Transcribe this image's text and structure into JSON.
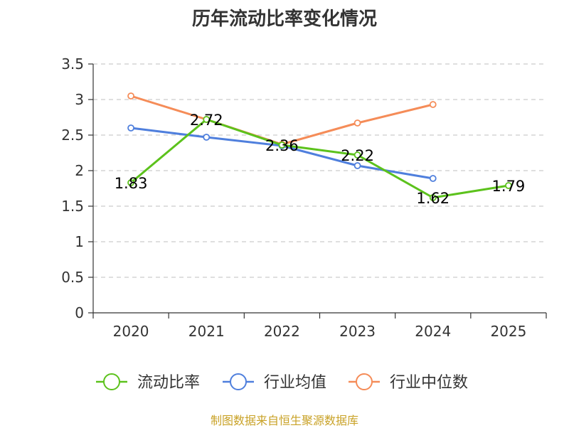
{
  "title": "历年流动比率变化情况",
  "source": "制图数据来自恒生聚源数据库",
  "chart_data": {
    "type": "line",
    "title": "历年流动比率变化情况",
    "xlabel": "",
    "ylabel": "",
    "categories": [
      "2020",
      "2021",
      "2022",
      "2023",
      "2024",
      "2025"
    ],
    "ylim": [
      0,
      3.5
    ],
    "yticks": [
      0,
      0.5,
      1,
      1.5,
      2,
      2.5,
      3,
      3.5
    ],
    "ytick_labels": [
      "0",
      "0.5",
      "1",
      "1.5",
      "2",
      "2.5",
      "3",
      "3.5"
    ],
    "grid": true,
    "legend_position": "bottom",
    "series": [
      {
        "name": "流动比率",
        "color": "#5cc21c",
        "values": [
          1.83,
          2.72,
          2.36,
          2.22,
          1.62,
          1.79
        ],
        "data_labels": [
          "1.83",
          "2.72",
          "2.36",
          "2.22",
          "1.62",
          "1.79"
        ]
      },
      {
        "name": "行业均值",
        "color": "#4f7fdd",
        "values": [
          2.6,
          2.47,
          2.35,
          2.07,
          1.89,
          null
        ]
      },
      {
        "name": "行业中位数",
        "color": "#f58c58",
        "values": [
          3.05,
          2.72,
          2.37,
          2.67,
          2.93,
          null
        ]
      }
    ]
  }
}
